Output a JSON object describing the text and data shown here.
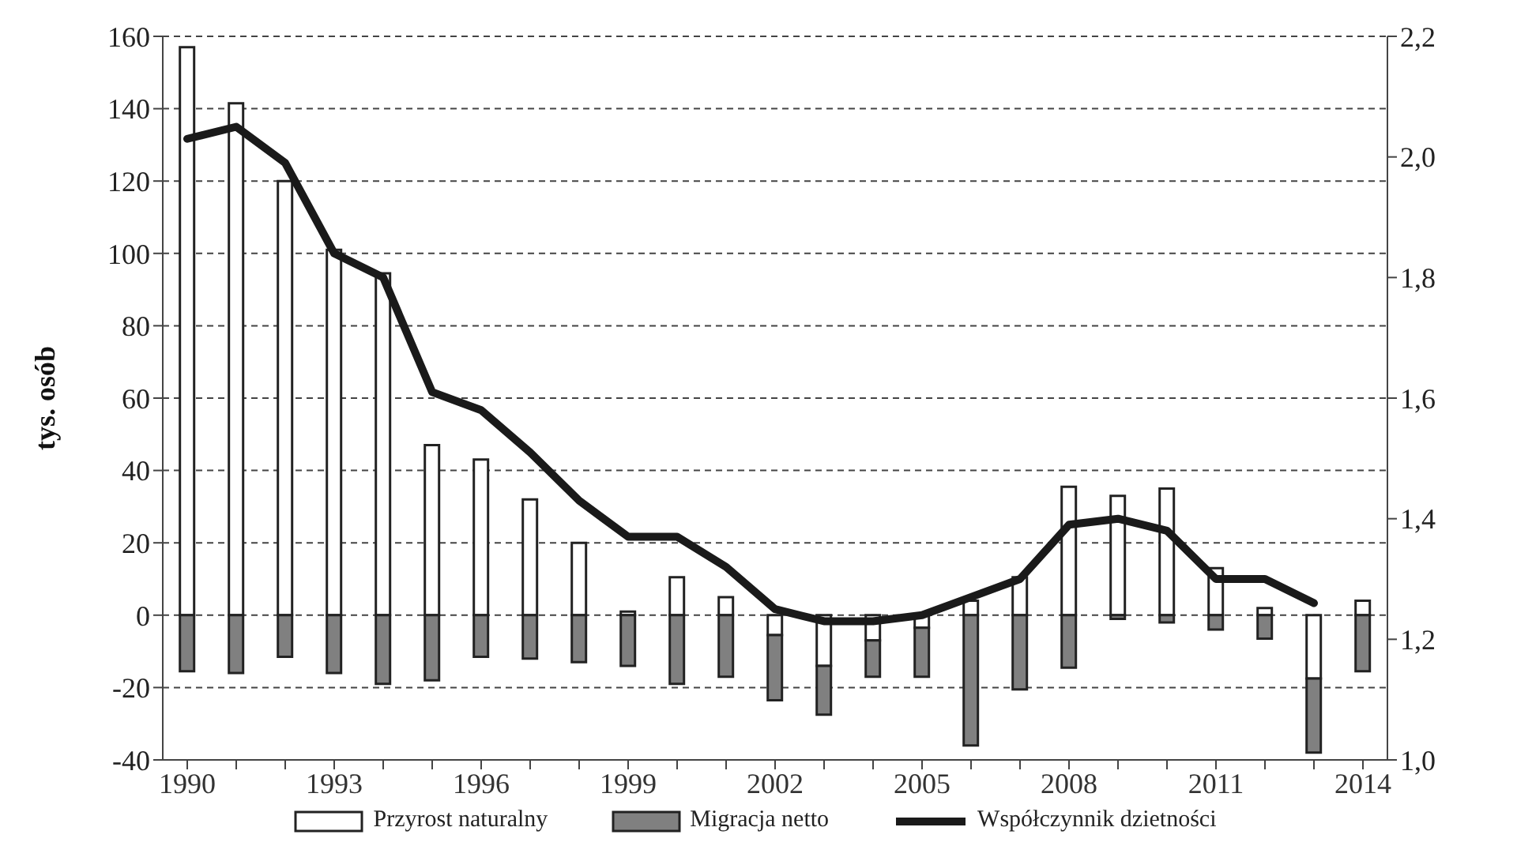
{
  "chart_data": {
    "type": "bar",
    "stacked": true,
    "ylabel": "tys. osób",
    "categories": [
      "1990",
      null,
      null,
      "1993",
      null,
      null,
      "1996",
      null,
      null,
      "1999",
      null,
      null,
      "2002",
      null,
      null,
      "2005",
      null,
      null,
      "2008",
      null,
      null,
      "2011",
      null,
      null,
      "2014"
    ],
    "series": [
      {
        "name": "Przyrost naturalny",
        "color": "#ffffff",
        "values": [
          157,
          141.5,
          120,
          101,
          94.5,
          47,
          43,
          32,
          20,
          1,
          10.5,
          5,
          -5.5,
          -14,
          -7,
          -3.5,
          4,
          10.5,
          35.5,
          33,
          35,
          13,
          2,
          -17.5,
          4
        ]
      },
      {
        "name": "Migracja netto",
        "color": "#808080",
        "values": [
          -15.5,
          -16,
          -11.5,
          -16,
          -19,
          -18,
          -11.5,
          -12,
          -13,
          -14,
          -19,
          -17,
          -18,
          -13.5,
          -10,
          -13.5,
          -36,
          -20.5,
          -14.5,
          -1,
          -2,
          -4,
          -6.5,
          -20.5,
          -15.5
        ]
      },
      {
        "name": "Współczynnik dzietności",
        "type": "line",
        "axis": "y2",
        "color": "#1a1a1a",
        "marker": "none",
        "values": [
          2.03,
          2.05,
          1.99,
          1.84,
          1.8,
          1.61,
          1.58,
          1.51,
          1.43,
          1.37,
          1.37,
          1.32,
          1.25,
          1.23,
          1.23,
          1.24,
          1.27,
          1.3,
          1.39,
          1.4,
          1.38,
          1.3,
          1.3,
          1.26,
          null
        ]
      }
    ],
    "ylim": [
      -40,
      160
    ],
    "yticks": [
      -40,
      -20,
      0,
      20,
      40,
      60,
      80,
      100,
      120,
      140,
      160
    ],
    "y2lim": [
      1.0,
      2.2
    ],
    "y2ticks": [
      {
        "value": 1.0,
        "label": "1,0"
      },
      {
        "value": 1.2,
        "label": "1,2"
      },
      {
        "value": 1.4,
        "label": "1,4"
      },
      {
        "value": 1.6,
        "label": "1,6"
      },
      {
        "value": 1.8,
        "label": "1,8"
      },
      {
        "value": 2.0,
        "label": "2,0"
      },
      {
        "value": 2.2,
        "label": "2,2"
      }
    ],
    "grid": "y",
    "legend": "bottom"
  }
}
